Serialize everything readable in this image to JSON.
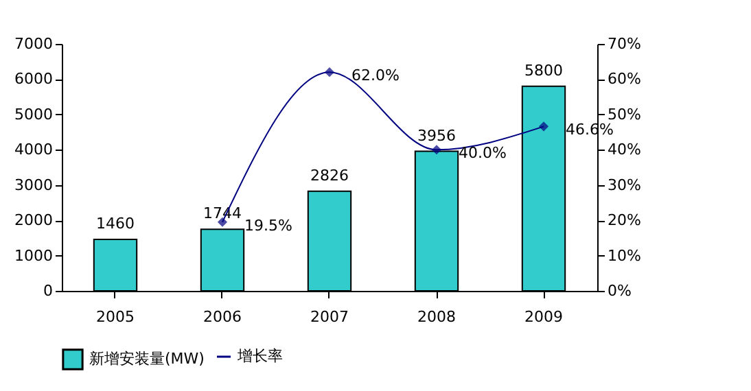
{
  "chart_data": {
    "type": "bar",
    "categories": [
      "2005",
      "2006",
      "2007",
      "2008",
      "2009"
    ],
    "series": [
      {
        "name": "新增安装量(MW)",
        "color": "#33cccc",
        "values": [
          1460,
          1744,
          2826,
          3956,
          5800
        ],
        "value_labels": [
          "1460",
          "1744",
          "2826",
          "3956",
          "5800"
        ]
      },
      {
        "name": "增长率",
        "type": "line",
        "axis": "y2",
        "color": "#000080",
        "values": [
          null,
          19.5,
          62.0,
          40.0,
          46.6
        ],
        "value_labels": [
          null,
          "19.5%",
          "62.0%",
          "40.0%",
          "46.6%"
        ]
      }
    ],
    "ylim": [
      0,
      7000
    ],
    "yticks": [
      0,
      1000,
      2000,
      3000,
      4000,
      5000,
      6000,
      7000
    ],
    "y2lim": [
      0,
      70
    ],
    "y2ticks": [
      {
        "value": 0,
        "label": "0%"
      },
      {
        "value": 10,
        "label": "10%"
      },
      {
        "value": 20,
        "label": "20%"
      },
      {
        "value": 30,
        "label": "30%"
      },
      {
        "value": 40,
        "label": "40%"
      },
      {
        "value": 50,
        "label": "50%"
      },
      {
        "value": 60,
        "label": "60%"
      },
      {
        "value": 70,
        "label": "70%"
      }
    ],
    "marker": "diamond",
    "grid": false,
    "legend": "bottom"
  }
}
